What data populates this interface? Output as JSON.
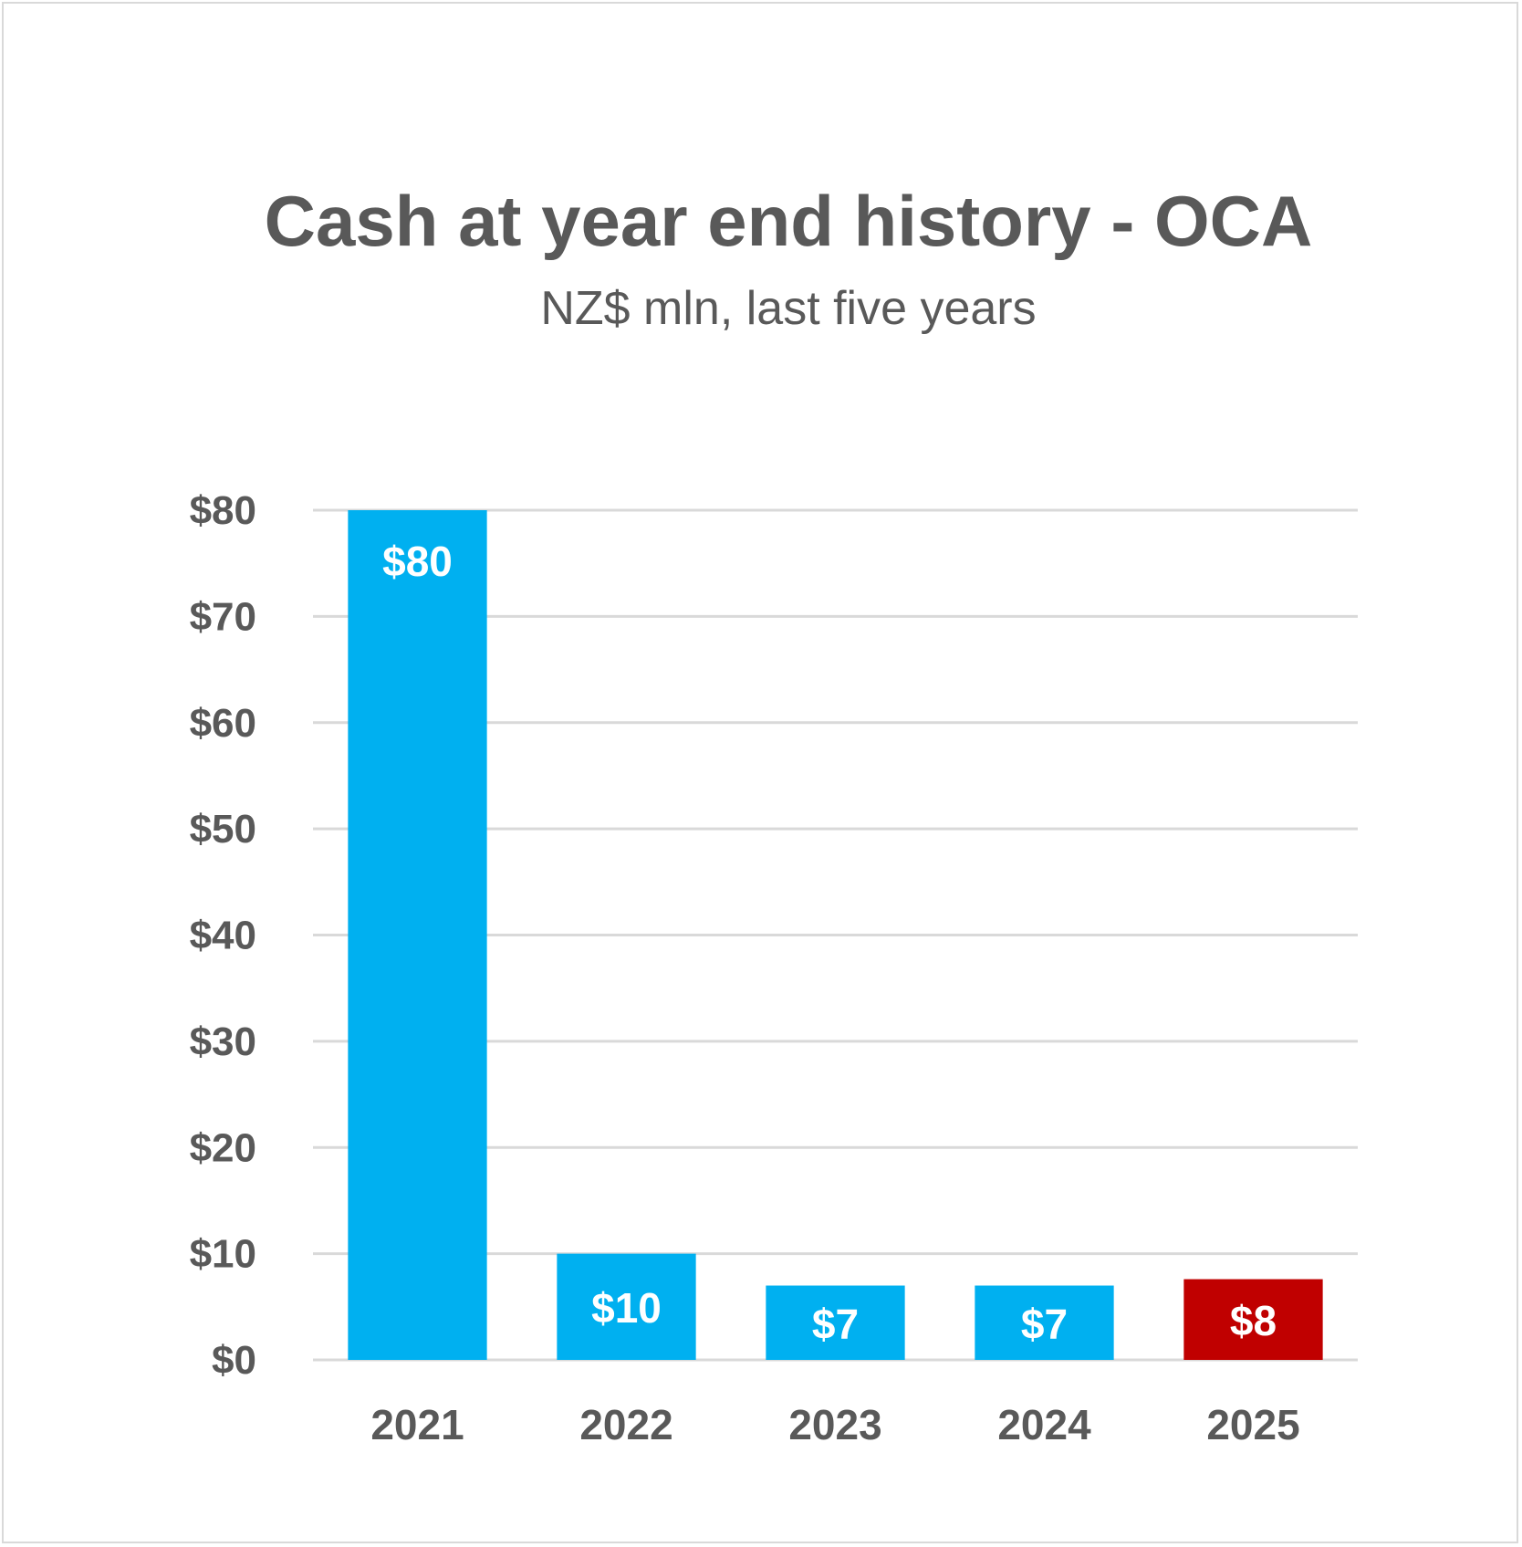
{
  "chart_data": {
    "type": "bar",
    "title": "Cash at year end history - OCA",
    "subtitle": "NZ$ mln, last five years",
    "categories": [
      "2021",
      "2022",
      "2023",
      "2024",
      "2025"
    ],
    "values": [
      80,
      10,
      7,
      7,
      7.6
    ],
    "data_labels": [
      "$80",
      "$10",
      "$7",
      "$7",
      "$8"
    ],
    "bar_colors": [
      "#00b0f0",
      "#00b0f0",
      "#00b0f0",
      "#00b0f0",
      "#c00000"
    ],
    "ylim": [
      0,
      80
    ],
    "yticks": [
      0,
      10,
      20,
      30,
      40,
      50,
      60,
      70,
      80
    ],
    "ytick_labels": [
      "$0",
      "$10",
      "$20",
      "$30",
      "$40",
      "$50",
      "$60",
      "$70",
      "$80"
    ],
    "grid": true,
    "legend": "none"
  }
}
